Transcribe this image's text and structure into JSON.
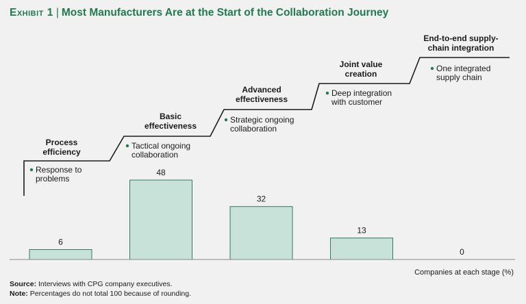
{
  "header": {
    "exhibit_label": "Exhibit 1",
    "title": "Most Manufacturers Are at the Start of the Collaboration Journey"
  },
  "chart_data": {
    "type": "bar",
    "categories": [
      "Process efficiency",
      "Basic effectiveness",
      "Advanced effectiveness",
      "Joint value creation",
      "End-to-end supply-chain integration"
    ],
    "values": [
      6,
      48,
      32,
      13,
      0
    ],
    "value_labels": [
      "6",
      "48",
      "32",
      "13",
      "0"
    ],
    "ylim": [
      0,
      48
    ],
    "xlabel": "Companies at each stage (%)",
    "ylabel": "",
    "grid": false,
    "stages": [
      {
        "title_lines": [
          "Process",
          "efficiency"
        ],
        "bullet_lines": [
          "Response to",
          "problems"
        ]
      },
      {
        "title_lines": [
          "Basic",
          "effectiveness"
        ],
        "bullet_lines": [
          "Tactical ongoing",
          "collaboration"
        ]
      },
      {
        "title_lines": [
          "Advanced",
          "effectiveness"
        ],
        "bullet_lines": [
          "Strategic ongoing",
          "collaboration"
        ]
      },
      {
        "title_lines": [
          "Joint value",
          "creation"
        ],
        "bullet_lines": [
          "Deep integration",
          "with customer"
        ]
      },
      {
        "title_lines": [
          "End-to-end supply-",
          "chain integration"
        ],
        "bullet_lines": [
          "One integrated",
          "supply chain"
        ]
      }
    ],
    "colors": {
      "bar_fill": "#c8e2da",
      "bar_stroke": "#2f7a66",
      "bullet": "#1f7a4f",
      "staircase": "#1a1a1a"
    }
  },
  "footer": {
    "source_label": "Source:",
    "source_text": "Interviews with CPG company executives.",
    "note_label": "Note:",
    "note_text": "Percentages do not total 100 because of rounding."
  }
}
